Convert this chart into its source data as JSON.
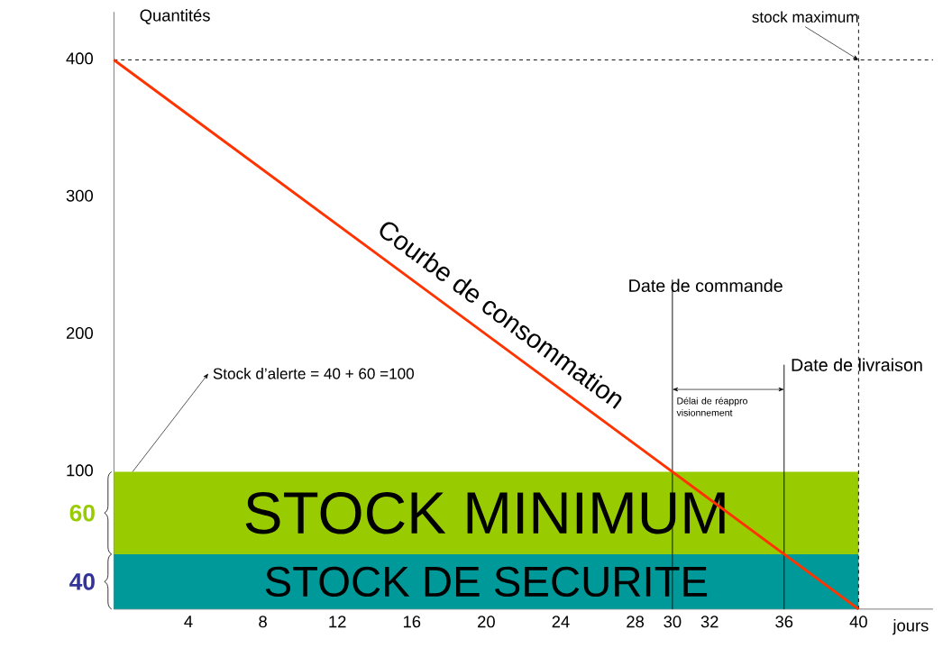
{
  "chart_data": {
    "type": "line",
    "xlabel": "jours",
    "ylabel": "Quantités",
    "x": [
      0,
      40
    ],
    "series": [
      {
        "color": "#ff3300",
        "values": [
          400,
          0
        ]
      }
    ],
    "xlim": [
      0,
      44
    ],
    "ylim": [
      0,
      435
    ],
    "xticks": [
      4,
      8,
      12,
      16,
      20,
      24,
      28,
      30,
      32,
      36,
      40
    ],
    "yticks": [
      100,
      200,
      300,
      400
    ],
    "grid": false,
    "line_style": "solid",
    "bands": [
      {
        "axis": "y",
        "from": 0,
        "to": 40,
        "label": "STOCK DE SECURITE",
        "color": "#009999"
      },
      {
        "axis": "y",
        "from": 40,
        "to": 100,
        "label": "STOCK MINIMUM",
        "color": "#99cc00"
      }
    ],
    "ref_lines": [
      {
        "axis": "x",
        "value": 30,
        "label": "Date de commande",
        "line_style": "solid"
      },
      {
        "axis": "x",
        "value": 36,
        "label": "Date de livraison",
        "line_style": "solid"
      },
      {
        "axis": "x",
        "value": 40,
        "line_style": "dashed"
      },
      {
        "axis": "y",
        "value": 400,
        "line_style": "dashed"
      }
    ],
    "annotations": [
      {
        "text": "Courbe de consommation",
        "x": 20,
        "y": 200
      },
      {
        "text": "Stock d’alerte = 40 + 60 =100",
        "x": 1,
        "y": 100
      },
      "Délai de réappro visionnement",
      {
        "text": "stock maximum",
        "x": 40,
        "y": 400
      },
      {
        "text": "60",
        "x": 0,
        "y": 70
      },
      {
        "text": "40",
        "x": 0,
        "y": 20
      }
    ]
  }
}
